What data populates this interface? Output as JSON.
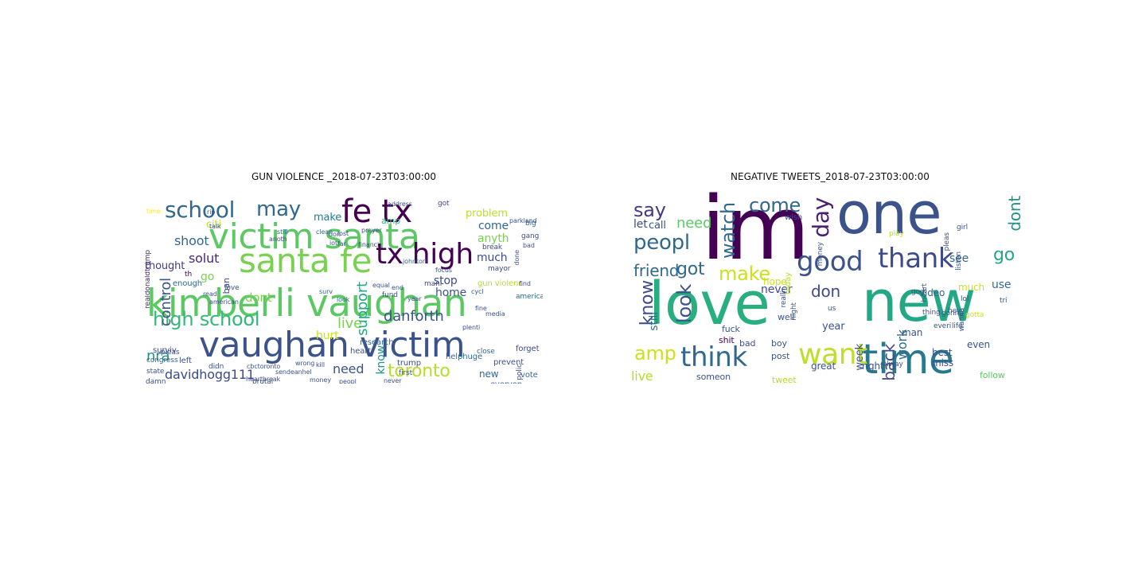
{
  "figure": {
    "panels": [
      {
        "id": "gun-violence",
        "title": "GUN VIOLENCE _2018-07-23T03:00:00",
        "words": [
          {
            "text": "kimberli vaughan",
            "color": "#5cc863"
          },
          {
            "text": "vaughan victim",
            "color": "#3b528b"
          },
          {
            "text": "victim santa",
            "color": "#5cc863"
          },
          {
            "text": "santa fe",
            "color": "#7ad151"
          },
          {
            "text": "fe tx",
            "color": "#440154"
          },
          {
            "text": "tx high",
            "color": "#440154"
          },
          {
            "text": "school",
            "color": "#31688e"
          },
          {
            "text": "may",
            "color": "#31688e"
          },
          {
            "text": "high school",
            "color": "#35b779"
          },
          {
            "text": "toronto",
            "color": "#b5de2b"
          },
          {
            "text": "danforth",
            "color": "#3b528b"
          },
          {
            "text": "davidhogg111",
            "color": "#3e4a89"
          },
          {
            "text": "live",
            "color": "#7ad151"
          },
          {
            "text": "support",
            "color": "#22a884"
          },
          {
            "text": "need",
            "color": "#3b528b"
          },
          {
            "text": "nra",
            "color": "#21918c"
          },
          {
            "text": "control",
            "color": "#3b528b"
          },
          {
            "text": "shoot",
            "color": "#31688e"
          },
          {
            "text": "solut",
            "color": "#482878"
          },
          {
            "text": "thought",
            "color": "#443983"
          },
          {
            "text": "citi",
            "color": "#bddf26"
          },
          {
            "text": "make",
            "color": "#2a788e"
          },
          {
            "text": "come",
            "color": "#31688e"
          },
          {
            "text": "problem",
            "color": "#bddf26"
          },
          {
            "text": "home",
            "color": "#3b528b"
          },
          {
            "text": "stop",
            "color": "#3e4a89"
          },
          {
            "text": "dont",
            "color": "#7ad151"
          },
          {
            "text": "hurt",
            "color": "#cae11f"
          },
          {
            "text": "much",
            "color": "#3e4a89"
          },
          {
            "text": "anyth",
            "color": "#7ad151"
          },
          {
            "text": "know",
            "color": "#21918c"
          },
          {
            "text": "new",
            "color": "#31688e"
          },
          {
            "text": "sur",
            "color": "#cae11f"
          },
          {
            "text": "amp",
            "color": "#35b779"
          },
          {
            "text": "go",
            "color": "#7ad151"
          },
          {
            "text": "th",
            "color": "#440154"
          },
          {
            "text": "ban",
            "color": "#3e4a89"
          },
          {
            "text": "left",
            "color": "#3b528b"
          },
          {
            "text": "surviv",
            "color": "#3e4a89"
          },
          {
            "text": "mass shoot",
            "color": "#2a788e"
          },
          {
            "text": "gun violenc",
            "color": "#b5de2b"
          },
          {
            "text": "trump",
            "color": "#3b528b"
          },
          {
            "text": "heart",
            "color": "#3b528b"
          },
          {
            "text": "forget",
            "color": "#3e4a89"
          },
          {
            "text": "prevent",
            "color": "#3b528b"
          },
          {
            "text": "vote",
            "color": "#31688e"
          },
          {
            "text": "everyon",
            "color": "#3b528b"
          },
          {
            "text": "fund",
            "color": "#3b528b"
          },
          {
            "text": "close",
            "color": "#31688e"
          },
          {
            "text": "america",
            "color": "#31688e"
          },
          {
            "text": "enough",
            "color": "#31688e"
          },
          {
            "text": "state",
            "color": "#3b528b"
          },
          {
            "text": "congress",
            "color": "#31688e"
          },
          {
            "text": "polic",
            "color": "#3e4a89"
          },
          {
            "text": "big",
            "color": "#31688e"
          },
          {
            "text": "gang",
            "color": "#3e4a89"
          },
          {
            "text": "break",
            "color": "#3e4a89"
          },
          {
            "text": "love",
            "color": "#3b528b"
          },
          {
            "text": "mayor",
            "color": "#3e4a89"
          },
          {
            "text": "helphuge",
            "color": "#31688e"
          },
          {
            "text": "research",
            "color": "#31688e"
          },
          {
            "text": "brutal",
            "color": "#3b528b"
          },
          {
            "text": "realdonaldtrump",
            "color": "#482878"
          },
          {
            "text": "pleas",
            "color": "#3b528b"
          },
          {
            "text": "damn",
            "color": "#3b528b"
          },
          {
            "text": "first",
            "color": "#3b528b"
          },
          {
            "text": "didn",
            "color": "#3b528b"
          },
          {
            "text": "time",
            "color": "#fde725"
          },
          {
            "text": "address",
            "color": "#3e4a89"
          },
          {
            "text": "got",
            "color": "#3e4a89"
          },
          {
            "text": "mani",
            "color": "#3e4a89"
          },
          {
            "text": "financi",
            "color": "#3e4a89"
          },
          {
            "text": "johntori",
            "color": "#31688e"
          },
          {
            "text": "anoth",
            "color": "#3e4a89"
          },
          {
            "text": "heartbreak",
            "color": "#3e4a89"
          },
          {
            "text": "peopl",
            "color": "#3e4a89"
          },
          {
            "text": "money",
            "color": "#3b528b"
          },
          {
            "text": "use",
            "color": "#3b528b"
          },
          {
            "text": "russian",
            "color": "#3b528b"
          },
          {
            "text": "folk",
            "color": "#3b528b"
          },
          {
            "text": "behind",
            "color": "#31688e"
          },
          {
            "text": "never",
            "color": "#3b528b"
          },
          {
            "text": "american",
            "color": "#3b528b"
          },
          {
            "text": "read",
            "color": "#3b528b"
          },
          {
            "text": "talk",
            "color": "#3b528b"
          },
          {
            "text": "clean",
            "color": "#31688e"
          },
          {
            "text": "still",
            "color": "#31688e"
          },
          {
            "text": "lost",
            "color": "#3b528b"
          },
          {
            "text": "bad",
            "color": "#3b528b"
          },
          {
            "text": "done",
            "color": "#3b528b"
          },
          {
            "text": "find",
            "color": "#3e4a89"
          },
          {
            "text": "alreadi",
            "color": "#3b528b"
          },
          {
            "text": "cbctoronto",
            "color": "#3b528b"
          },
          {
            "text": "sendeanhel",
            "color": "#3b528b"
          },
          {
            "text": "wrong",
            "color": "#3b528b"
          },
          {
            "text": "kill",
            "color": "#3e4a89"
          },
          {
            "text": "surv",
            "color": "#31688e"
          },
          {
            "text": "look",
            "color": "#31688e"
          },
          {
            "text": "end",
            "color": "#3b528b"
          },
          {
            "text": "cycl",
            "color": "#3b528b"
          },
          {
            "text": "year",
            "color": "#3b528b"
          },
          {
            "text": "don",
            "color": "#3b528b"
          },
          {
            "text": "far",
            "color": "#3b528b"
          },
          {
            "text": "equal",
            "color": "#3b528b"
          },
          {
            "text": "focus",
            "color": "#3b528b"
          },
          {
            "text": "media",
            "color": "#3b528b"
          },
          {
            "text": "fine",
            "color": "#3b528b"
          },
          {
            "text": "plenti",
            "color": "#3b528b"
          },
          {
            "text": "parkland",
            "color": "#3b528b"
          },
          {
            "text": "prayer",
            "color": "#3b528b"
          },
          {
            "text": "iot",
            "color": "#3b528b"
          },
          {
            "text": "rip",
            "color": "#3b528b"
          },
          {
            "text": "lie",
            "color": "#3b528b"
          },
          {
            "text": "us",
            "color": "#3b528b"
          },
          {
            "text": "fact",
            "color": "#3b528b"
          },
          {
            "text": "oo",
            "color": "#3e4a89"
          },
          {
            "text": "didnt",
            "color": "#3b528b"
          },
          {
            "text": "major",
            "color": "#3b528b"
          },
          {
            "text": "black",
            "color": "#3b528b"
          },
          {
            "text": "fallon",
            "color": "#3b528b"
          }
        ]
      },
      {
        "id": "negative-tweets",
        "title": "NEGATIVE TWEETS_2018-07-23T03:00:00",
        "words": [
          {
            "text": "love",
            "color": "#29af7f"
          },
          {
            "text": "new",
            "color": "#22a884"
          },
          {
            "text": "one",
            "color": "#3b528b"
          },
          {
            "text": "im",
            "color": "#440154"
          },
          {
            "text": "time",
            "color": "#2a788e"
          },
          {
            "text": "good",
            "color": "#3b528b"
          },
          {
            "text": "thank",
            "color": "#3e4a89"
          },
          {
            "text": "think",
            "color": "#31688e"
          },
          {
            "text": "want",
            "color": "#bddf26"
          },
          {
            "text": "watch",
            "color": "#31688e"
          },
          {
            "text": "come",
            "color": "#31688e"
          },
          {
            "text": "day",
            "color": "#481f70"
          },
          {
            "text": "peopl",
            "color": "#31688e"
          },
          {
            "text": "say",
            "color": "#443983"
          },
          {
            "text": "friend",
            "color": "#31688e"
          },
          {
            "text": "make",
            "color": "#cae11f"
          },
          {
            "text": "got",
            "color": "#31688e"
          },
          {
            "text": "go",
            "color": "#22a884"
          },
          {
            "text": "dont",
            "color": "#21918c"
          },
          {
            "text": "look",
            "color": "#3b528b"
          },
          {
            "text": "know",
            "color": "#3e4a89"
          },
          {
            "text": "amp",
            "color": "#cae11f"
          },
          {
            "text": "don",
            "color": "#3e4a89"
          },
          {
            "text": "back",
            "color": "#3e4a89"
          },
          {
            "text": "work",
            "color": "#31688e"
          },
          {
            "text": "need",
            "color": "#5cc863"
          },
          {
            "text": "let",
            "color": "#3e4a89"
          },
          {
            "text": "call",
            "color": "#3b528b"
          },
          {
            "text": "never",
            "color": "#3e4a89"
          },
          {
            "text": "year",
            "color": "#3b528b"
          },
          {
            "text": "still",
            "color": "#31688e"
          },
          {
            "text": "live",
            "color": "#b5de2b"
          },
          {
            "text": "week",
            "color": "#3b528b"
          },
          {
            "text": "use",
            "color": "#31688e"
          },
          {
            "text": "see",
            "color": "#31688e"
          },
          {
            "text": "video",
            "color": "#31688e"
          },
          {
            "text": "much",
            "color": "#cae11f"
          },
          {
            "text": "post",
            "color": "#3b528b"
          },
          {
            "text": "great",
            "color": "#3b528b"
          },
          {
            "text": "right",
            "color": "#3b528b"
          },
          {
            "text": "man",
            "color": "#3b528b"
          },
          {
            "text": "best",
            "color": "#3b528b"
          },
          {
            "text": "miss",
            "color": "#3b528b"
          },
          {
            "text": "even",
            "color": "#3b528b"
          },
          {
            "text": "follow",
            "color": "#5cc863"
          },
          {
            "text": "first",
            "color": "#3b528b"
          },
          {
            "text": "tweet",
            "color": "#b5de2b"
          },
          {
            "text": "someon",
            "color": "#3b528b"
          },
          {
            "text": "fuck",
            "color": "#3b528b"
          },
          {
            "text": "shit",
            "color": "#440154"
          },
          {
            "text": "bad",
            "color": "#3b528b"
          },
          {
            "text": "boy",
            "color": "#3b528b"
          },
          {
            "text": "hope",
            "color": "#cae11f"
          },
          {
            "text": "today",
            "color": "#b5de2b"
          },
          {
            "text": "well",
            "color": "#3b528b"
          },
          {
            "text": "money",
            "color": "#3b528b"
          },
          {
            "text": "wish",
            "color": "#3b528b"
          },
          {
            "text": "girl",
            "color": "#3b528b"
          },
          {
            "text": "heart",
            "color": "#3b528b"
          },
          {
            "text": "listen",
            "color": "#3b528b"
          },
          {
            "text": "pleas",
            "color": "#3b528b"
          },
          {
            "text": "everi",
            "color": "#3b528b"
          },
          {
            "text": "thing",
            "color": "#3b528b"
          },
          {
            "text": "alway",
            "color": "#3b528b"
          },
          {
            "text": "god",
            "color": "#3b528b"
          },
          {
            "text": "gonna",
            "color": "#3b528b"
          },
          {
            "text": "gotta",
            "color": "#cae11f"
          },
          {
            "text": "wanna",
            "color": "#3b528b"
          },
          {
            "text": "tri",
            "color": "#3b528b"
          },
          {
            "text": "lol",
            "color": "#3b528b"
          },
          {
            "text": "life",
            "color": "#3b528b"
          },
          {
            "text": "night",
            "color": "#3b528b"
          },
          {
            "text": "start",
            "color": "#3b528b"
          },
          {
            "text": "realli",
            "color": "#3b528b"
          },
          {
            "text": "us",
            "color": "#3b528b"
          },
          {
            "text": "play",
            "color": "#b5de2b"
          },
          {
            "text": "hey",
            "color": "#3b528b"
          }
        ]
      }
    ]
  }
}
